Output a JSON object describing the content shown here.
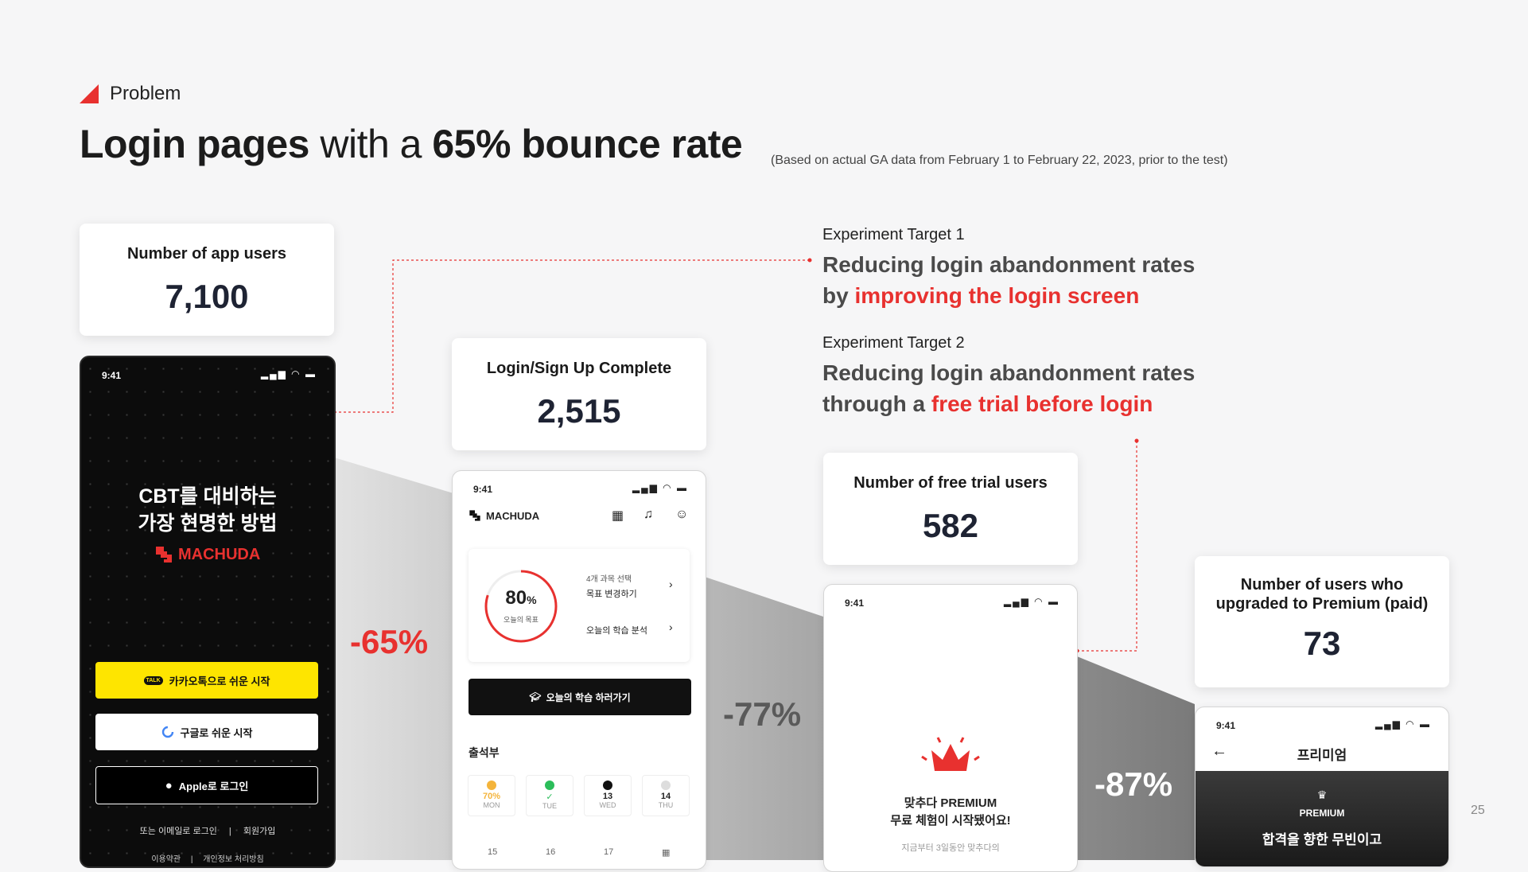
{
  "header": {
    "section": "Problem",
    "title_part1": "Login pages",
    "title_part2": " with a ",
    "title_part3": "65% bounce rate",
    "subtitle": "(Based on actual GA data from February 1 to February 22, 2023, prior to the test)"
  },
  "cards": {
    "app_users": {
      "label": "Number of app users",
      "value": "7,100"
    },
    "login_complete": {
      "label": "Login/Sign Up Complete",
      "value": "2,515"
    },
    "free_trial": {
      "label": "Number of free trial users",
      "value": "582"
    },
    "premium": {
      "label_line1": "Number of users who",
      "label_line2": "upgraded to Premium (paid)",
      "value": "73"
    }
  },
  "drops": {
    "d1": "-65%",
    "d2": "-77%",
    "d3": "-87%"
  },
  "experiments": {
    "t1": {
      "caption": "Experiment Target 1",
      "line1": "Reducing login abandonment rates",
      "line2_pre": "by ",
      "line2_red": "improving the login screen"
    },
    "t2": {
      "caption": "Experiment Target 2",
      "line1": "Reducing login abandonment rates",
      "line2_pre": "through a ",
      "line2_red": "free trial before login"
    }
  },
  "phone1": {
    "time": "9:41",
    "headline1": "CBT를 대비하는",
    "headline2": "가장 현명한 방법",
    "brand": "MACHUDA",
    "kakao": "카카오톡으로 쉬운 시작",
    "kakao_badge": "TALK",
    "google": "구글로 쉬운 시작",
    "apple": "Apple로 로그인",
    "email_login": "또는 이메일로 로그인",
    "signup": "회원가입",
    "footer_terms": "이용약관",
    "footer_privacy": "개인정보 처리방침"
  },
  "phone2": {
    "time": "9:41",
    "brand": "MACHUDA",
    "percent": "80",
    "percent_sign": "%",
    "goal_label": "오늘의 목표",
    "item1_a": "4개 과목 선택",
    "item1_b": "목표 변경하기",
    "item2": "오늘의 학습 분석",
    "study_btn": "오늘의 학습 하러가기",
    "attendance": "출석부",
    "days": [
      {
        "top": "70%",
        "bottom": "MON",
        "color": "#f4b43b"
      },
      {
        "top": "✓",
        "bottom": "TUE",
        "color": "#2bbd5a"
      },
      {
        "top": "13",
        "bottom": "WED",
        "color": "#111111"
      },
      {
        "top": "14",
        "bottom": "THU",
        "color": "#dddddd"
      }
    ],
    "days2": [
      "15",
      "16",
      "17"
    ]
  },
  "phone3": {
    "time": "9:41",
    "line1": "맞추다 PREMIUM",
    "line2": "무료 체험이 시작됐어요!",
    "line3": "지금부터 3일동안 맞추다의"
  },
  "phone4": {
    "time": "9:41",
    "title": "프리미엄",
    "badge": "PREMIUM",
    "cut_text": "합격을 향한 무빈이고"
  },
  "page_number": "25",
  "colors": {
    "accent": "#e8312f",
    "kakao": "#fee500",
    "dark": "#111111"
  }
}
